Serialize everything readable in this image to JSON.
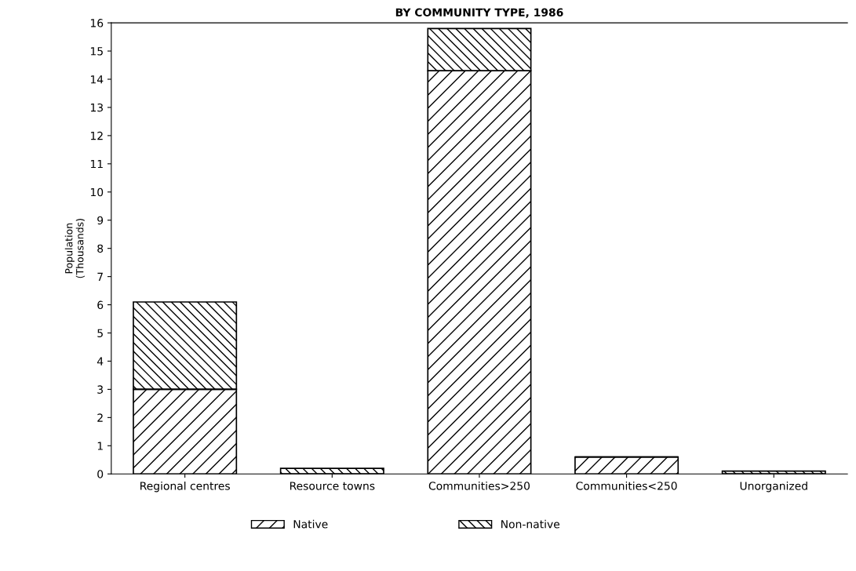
{
  "chart_data": {
    "type": "bar",
    "title": "BY COMMUNITY TYPE, 1986",
    "ylabel": "Population\n(Thousands)",
    "categories": [
      "Regional centres",
      "Resource towns",
      "Communities>250",
      "Communities<250",
      "Unorganized"
    ],
    "stacked": true,
    "series": [
      {
        "name": "Native",
        "color": "#000000",
        "values": [
          3.0,
          0,
          14.3,
          0.6,
          0
        ]
      },
      {
        "name": "Non-native",
        "color": "#000000",
        "values": [
          3.1,
          0.2,
          1.5,
          0,
          0.1
        ]
      }
    ],
    "ylim": [
      0,
      16
    ],
    "yticks": [
      0,
      1,
      2,
      3,
      4,
      5,
      6,
      7,
      8,
      9,
      10,
      11,
      12,
      13,
      14,
      15,
      16
    ],
    "grid": false,
    "legend": "bottom"
  }
}
